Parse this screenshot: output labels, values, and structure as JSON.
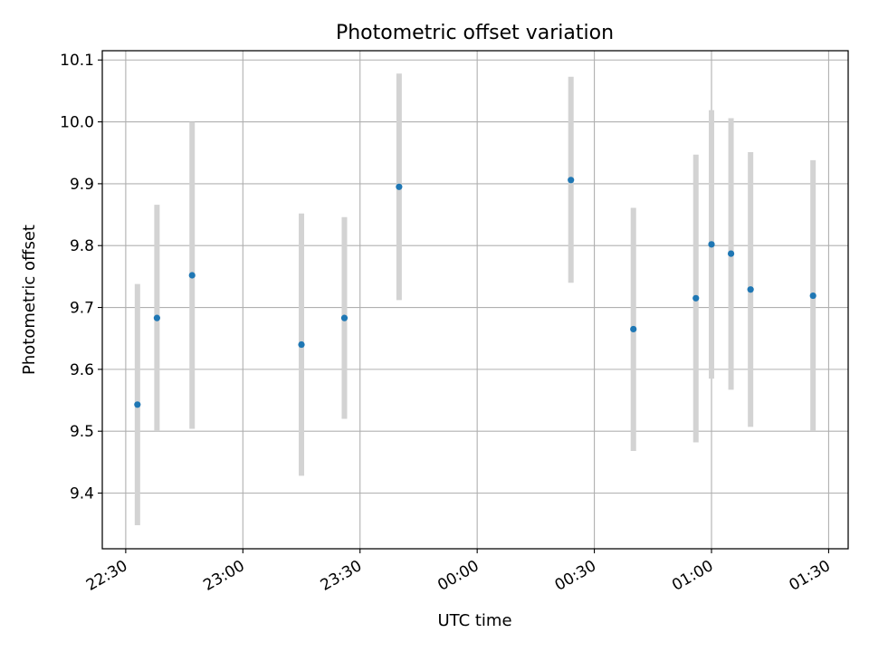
{
  "chart_data": {
    "type": "scatter",
    "title": "Photometric offset variation",
    "xlabel": "UTC time",
    "ylabel": "Photometric offset",
    "xlim": [
      "22:24",
      "01:35"
    ],
    "ylim": [
      9.31,
      10.115
    ],
    "grid": true,
    "x_ticks": [
      "22:30",
      "23:00",
      "23:30",
      "00:00",
      "00:30",
      "01:00",
      "01:30"
    ],
    "y_ticks": [
      "9.4",
      "9.5",
      "9.6",
      "9.7",
      "9.8",
      "9.9",
      "10.0",
      "10.1"
    ],
    "points_color": "#1f77b4",
    "errorbar_color": "#d3d3d3",
    "points": [
      {
        "x": "22:33",
        "y": 9.543,
        "ylow": 9.348,
        "yhigh": 9.738
      },
      {
        "x": "22:38",
        "y": 9.683,
        "ylow": 9.5,
        "yhigh": 9.866
      },
      {
        "x": "22:47",
        "y": 9.752,
        "ylow": 9.504,
        "yhigh": 10.0
      },
      {
        "x": "23:15",
        "y": 9.64,
        "ylow": 9.428,
        "yhigh": 9.852
      },
      {
        "x": "23:26",
        "y": 9.683,
        "ylow": 9.52,
        "yhigh": 9.846
      },
      {
        "x": "23:40",
        "y": 9.895,
        "ylow": 9.712,
        "yhigh": 10.078
      },
      {
        "x": "00:24",
        "y": 9.906,
        "ylow": 9.74,
        "yhigh": 10.073
      },
      {
        "x": "00:40",
        "y": 9.665,
        "ylow": 9.468,
        "yhigh": 9.861
      },
      {
        "x": "00:56",
        "y": 9.715,
        "ylow": 9.482,
        "yhigh": 9.947
      },
      {
        "x": "01:00",
        "y": 9.802,
        "ylow": 9.585,
        "yhigh": 10.019
      },
      {
        "x": "01:05",
        "y": 9.787,
        "ylow": 9.567,
        "yhigh": 10.006
      },
      {
        "x": "01:10",
        "y": 9.729,
        "ylow": 9.507,
        "yhigh": 9.951
      },
      {
        "x": "01:26",
        "y": 9.719,
        "ylow": 9.5,
        "yhigh": 9.938
      }
    ]
  }
}
